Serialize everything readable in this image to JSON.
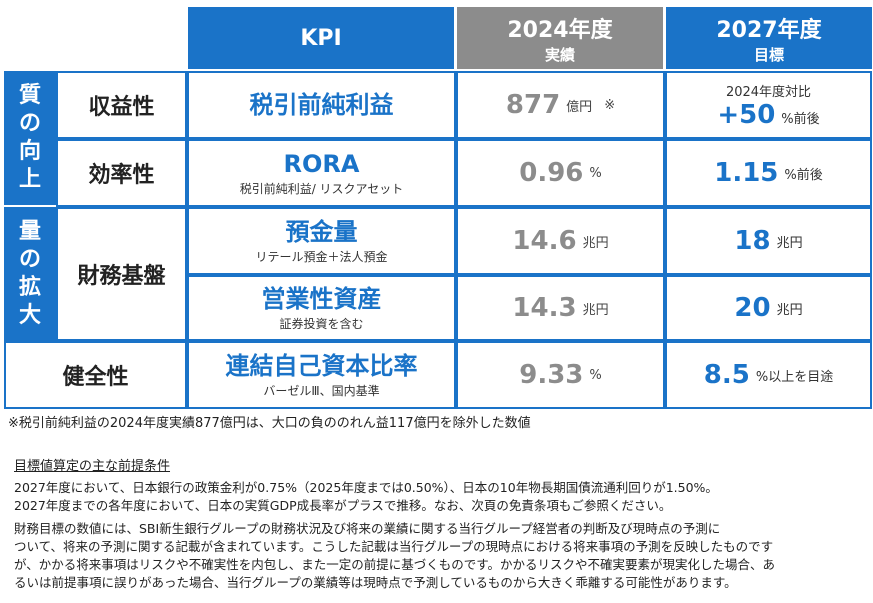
{
  "header": {
    "kpi": "KPI",
    "actual_year": "2024年度",
    "actual_sub": "実績",
    "target_year": "2027年度",
    "target_sub": "目標"
  },
  "groups": {
    "quality": [
      "質",
      "の",
      "向",
      "上"
    ],
    "scale": [
      "量",
      "の",
      "拡",
      "大"
    ]
  },
  "rows": {
    "profit": {
      "category": "収益性",
      "kpi": "税引前純利益",
      "actual_value": "877",
      "actual_unit": "億円",
      "actual_note": "※",
      "target_prefix": "2024年度対比",
      "target_value": "+50",
      "target_unit": "%前後"
    },
    "efficiency": {
      "category": "効率性",
      "kpi": "RORA",
      "kpi_sub": "税引前純利益/ リスクアセット",
      "actual_value": "0.96",
      "actual_unit": "%",
      "target_value": "1.15",
      "target_unit": "%前後"
    },
    "financial": {
      "category": "財務基盤",
      "deposits_kpi": "預金量",
      "deposits_sub": "リテール預金＋法人預金",
      "deposits_actual": "14.6",
      "deposits_actual_unit": "兆円",
      "deposits_target": "18",
      "deposits_target_unit": "兆円",
      "assets_kpi": "営業性資産",
      "assets_sub": "証券投資を含む",
      "assets_actual": "14.3",
      "assets_actual_unit": "兆円",
      "assets_target": "20",
      "assets_target_unit": "兆円"
    },
    "soundness": {
      "category": "健全性",
      "kpi": "連結自己資本比率",
      "kpi_sub": "バーゼルⅢ、国内基準",
      "actual_value": "9.33",
      "actual_unit": "%",
      "target_value": "8.5",
      "target_unit": "%以上を目途"
    }
  },
  "footnote": "※税引前純利益の2024年度実績877億円は、大口の負ののれん益117億円を除外した数値",
  "assumptions": {
    "title": "目標値算定の主な前提条件",
    "line1": "2027年度において、日本銀行の政策金利が0.75%（2025年度までは0.50%）、日本の10年物長期国債流通利回りが1.50%。",
    "line2": "2027年度までの各年度において、日本の実質GDP成長率がプラスで推移。なお、次頁の免責条項もご参照ください。"
  },
  "disclaimer": {
    "line1": "財務目標の数値には、SBI新生銀行グループの財務状況及び将来の業績に関する当行グループ経営者の判断及び現時点の予測に",
    "line2": "ついて、将来の予測に関する記載が含まれています。こうした記載は当行グループの現時点における将来事項の予測を反映したものです",
    "line3": "が、かかる将来事項はリスクや不確実性を内包し、また一定の前提に基づくものです。かかるリスクや不確実要素が現実化した場合、あ",
    "line4": "るいは前提事項に誤りがあった場合、当行グループの業績等は現時点で予測しているものから大きく乖離する可能性があります。"
  }
}
